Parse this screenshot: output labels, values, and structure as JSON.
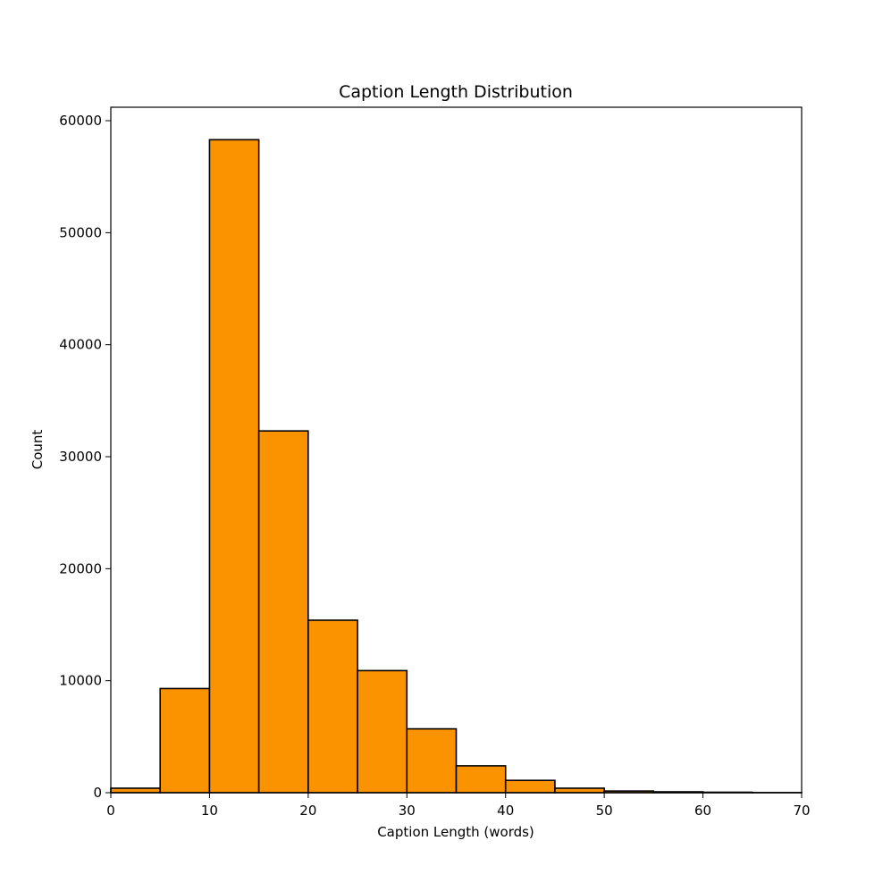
{
  "chart_data": {
    "type": "bar",
    "title": "Caption Length Distribution",
    "xlabel": "Caption Length (words)",
    "ylabel": "Count",
    "xlim": [
      0,
      70
    ],
    "ylim": [
      0,
      61200
    ],
    "xticks": [
      0,
      10,
      20,
      30,
      40,
      50,
      60,
      70
    ],
    "yticks": [
      0,
      10000,
      20000,
      30000,
      40000,
      50000,
      60000
    ],
    "bin_width": 5,
    "bins": [
      {
        "start": 0,
        "end": 5,
        "count": 400
      },
      {
        "start": 5,
        "end": 10,
        "count": 9300
      },
      {
        "start": 10,
        "end": 15,
        "count": 58300
      },
      {
        "start": 15,
        "end": 20,
        "count": 32300
      },
      {
        "start": 20,
        "end": 25,
        "count": 15400
      },
      {
        "start": 25,
        "end": 30,
        "count": 10900
      },
      {
        "start": 30,
        "end": 35,
        "count": 5700
      },
      {
        "start": 35,
        "end": 40,
        "count": 2400
      },
      {
        "start": 40,
        "end": 45,
        "count": 1100
      },
      {
        "start": 45,
        "end": 50,
        "count": 400
      },
      {
        "start": 50,
        "end": 55,
        "count": 150
      },
      {
        "start": 55,
        "end": 60,
        "count": 80
      },
      {
        "start": 60,
        "end": 65,
        "count": 40
      },
      {
        "start": 65,
        "end": 70,
        "count": 10
      }
    ],
    "bar_color": "#fb9300",
    "edge_color": "#000000",
    "grid": false,
    "legend": false
  }
}
